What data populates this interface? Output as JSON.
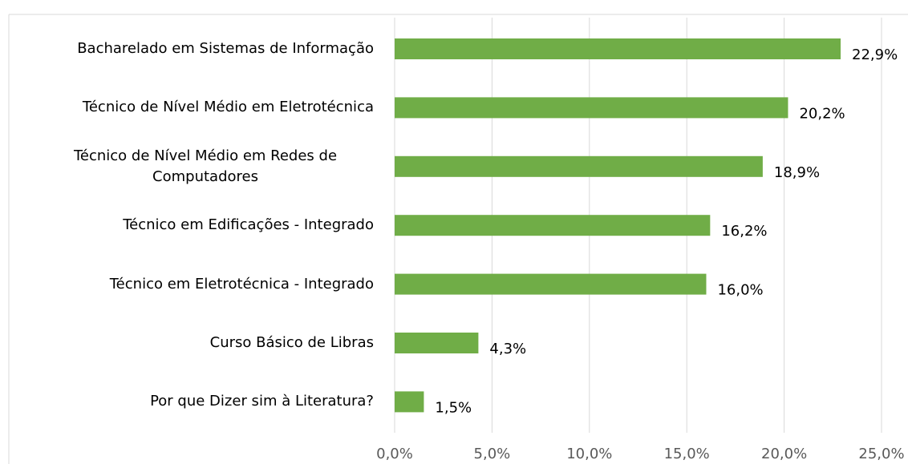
{
  "chart_data": {
    "type": "barh",
    "categories": [
      "Bacharelado em Sistemas de Informação",
      "Técnico de Nível Médio em Eletrotécnica",
      "Técnico de Nível Médio em Redes de Computadores",
      "Técnico em Edificações - Integrado",
      "Técnico em Eletrotécnica  - Integrado",
      "Curso Básico de Libras",
      "Por que Dizer sim à Literatura?"
    ],
    "values": [
      22.9,
      20.2,
      18.9,
      16.2,
      16.0,
      4.3,
      1.5
    ],
    "value_labels": [
      "22,9%",
      "20,2%",
      "18,9%",
      "16,2%",
      "16,0%",
      "4,3%",
      "1,5%"
    ],
    "color": "#70ad47",
    "xlim": [
      0,
      25
    ],
    "xticks": [
      {
        "value": 0,
        "label": "0,0%"
      },
      {
        "value": 5,
        "label": "5,0%"
      },
      {
        "value": 10,
        "label": "10,0%"
      },
      {
        "value": 15,
        "label": "15,0%"
      },
      {
        "value": 20,
        "label": "20,0%"
      },
      {
        "value": 25,
        "label": "25,0%"
      }
    ],
    "grid": true
  }
}
